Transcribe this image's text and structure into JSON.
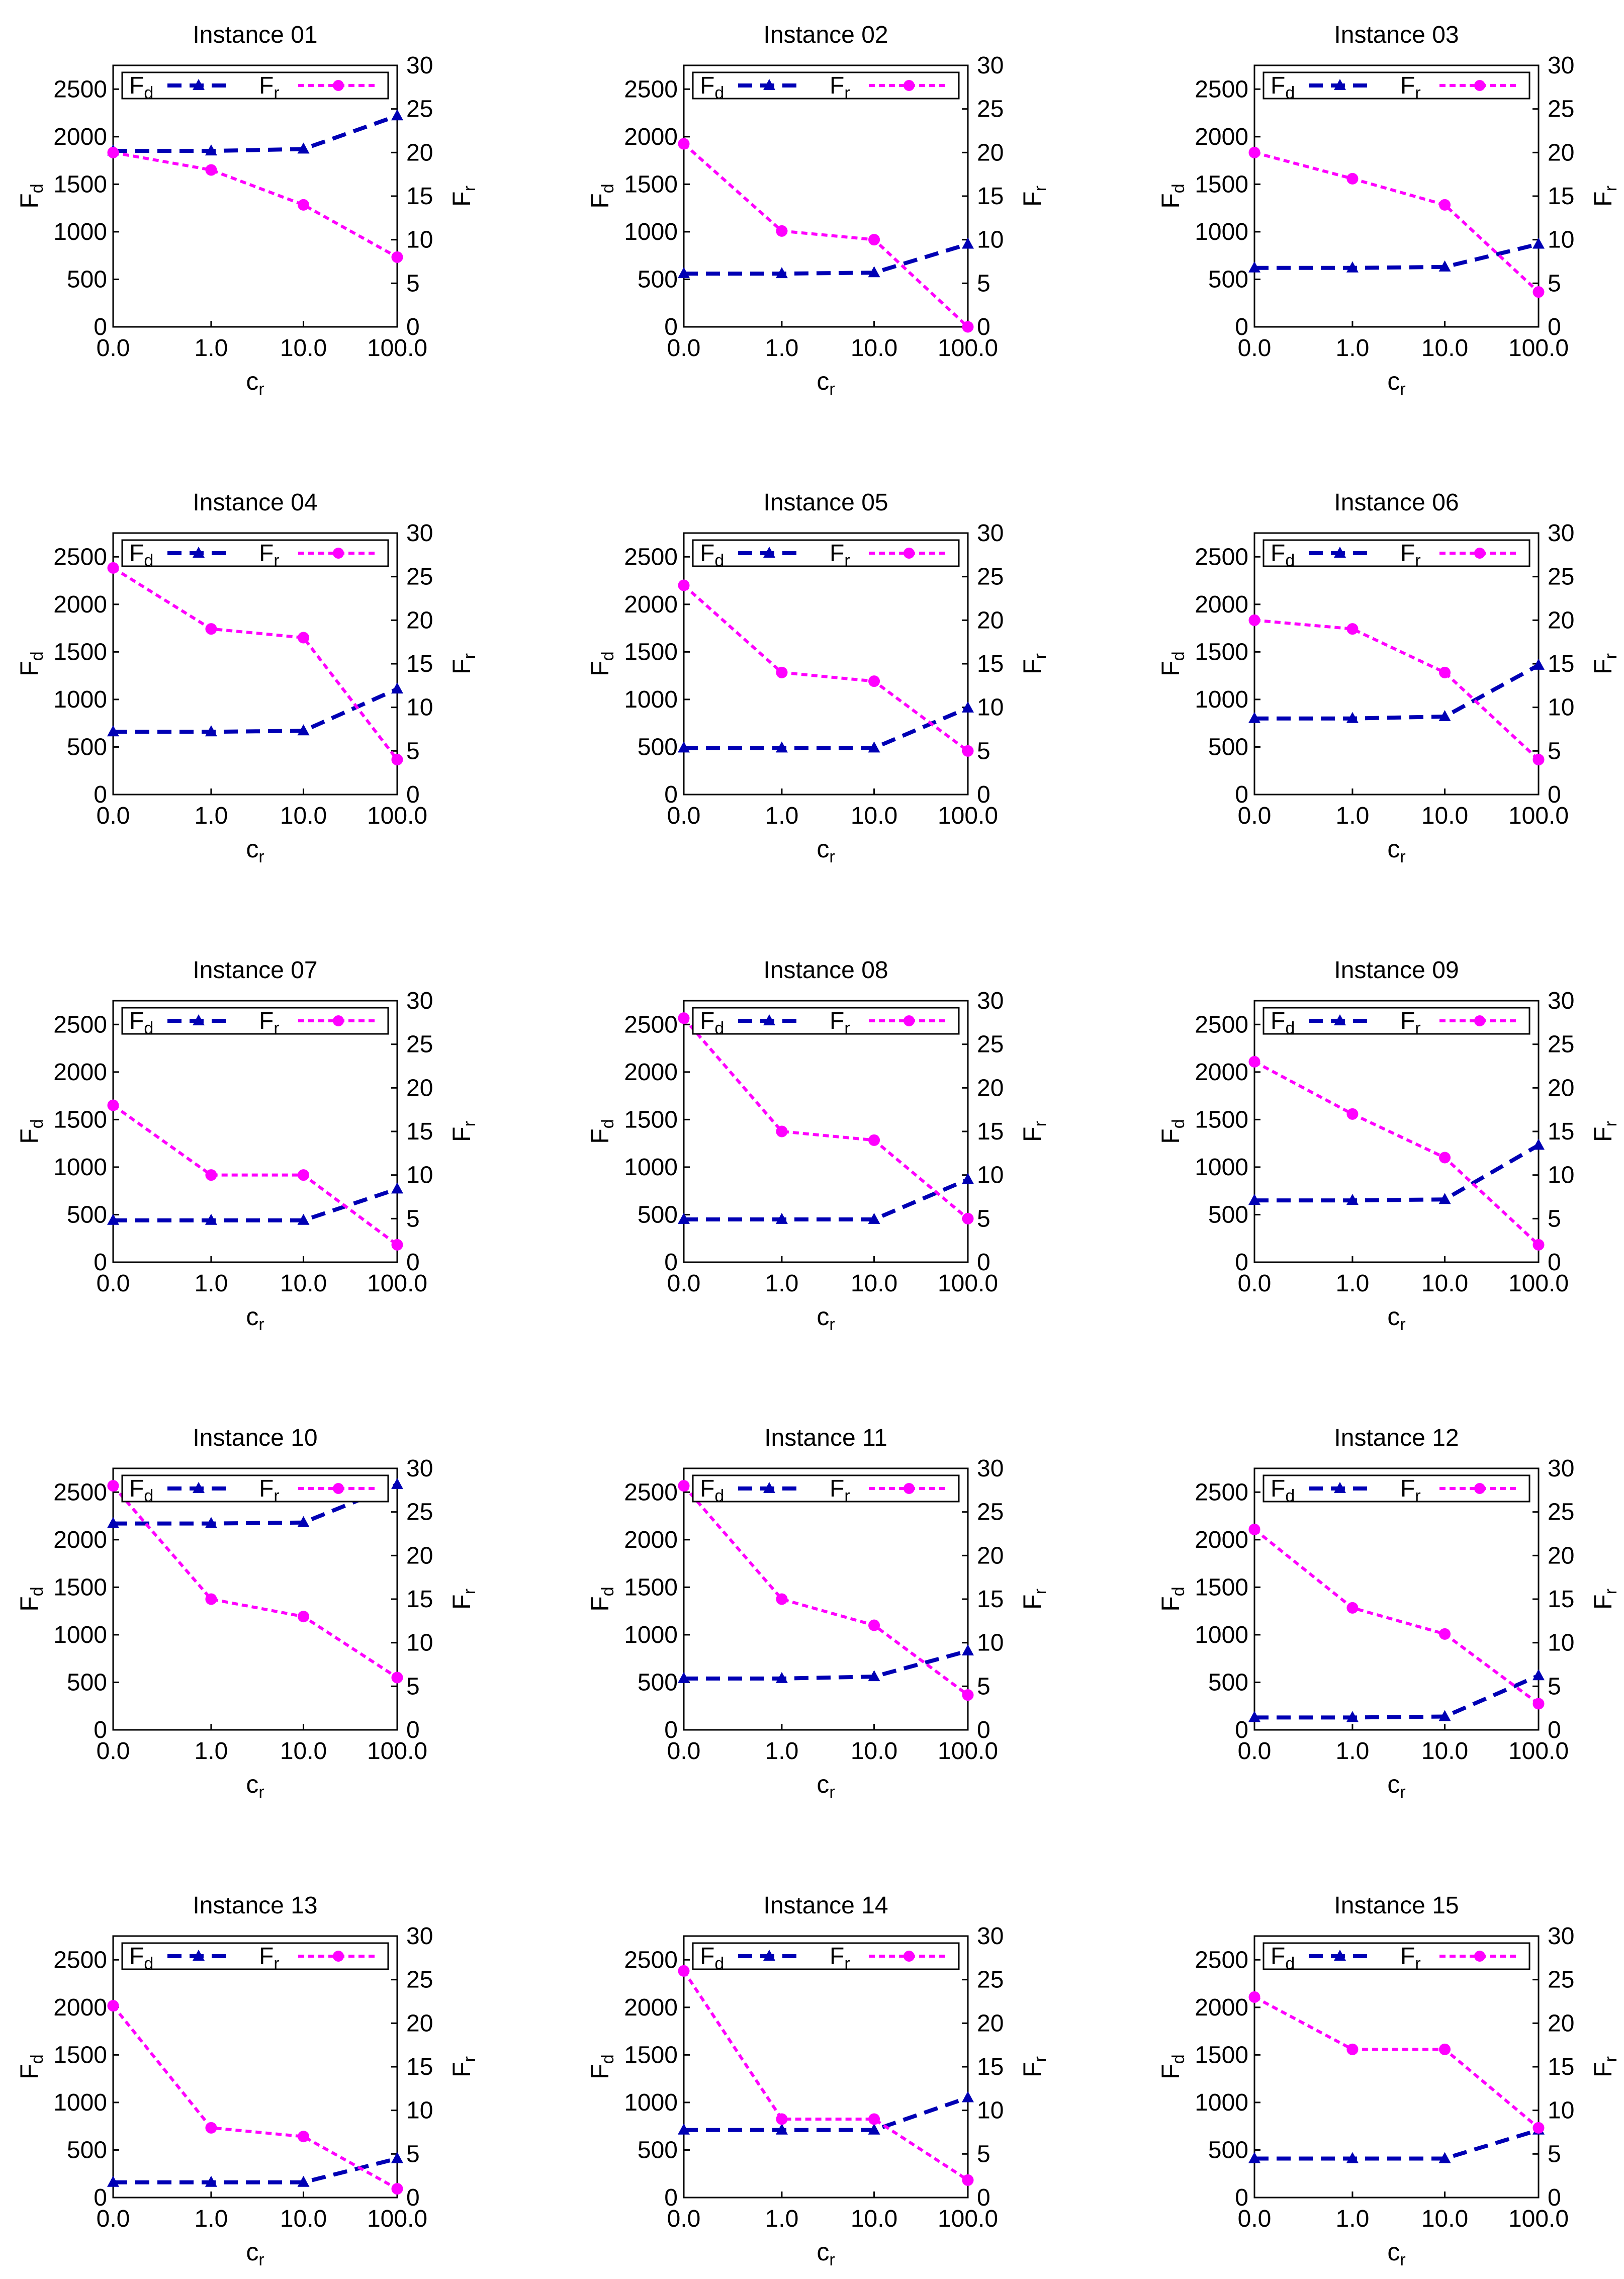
{
  "chart_data": {
    "type": "line",
    "layout": "grid 5x3 small multiples",
    "x_categories": [
      "0.0",
      "1.0",
      "10.0",
      "100.0"
    ],
    "xlabel": {
      "base": "c",
      "sub": "r"
    },
    "ylabel_left": {
      "base": "F",
      "sub": "d"
    },
    "ylabel_right": {
      "base": "F",
      "sub": "r"
    },
    "ylim_left": [
      0,
      2750
    ],
    "ylim_right": [
      0,
      30
    ],
    "yticks_left": [
      0,
      500,
      1000,
      1500,
      2000,
      2500
    ],
    "yticks_right": [
      0,
      5,
      10,
      15,
      20,
      25,
      30
    ],
    "legend": {
      "position": "top",
      "entries": [
        {
          "base": "F",
          "sub": "d",
          "color": "#0000b4",
          "style": "dashed",
          "marker": "triangle"
        },
        {
          "base": "F",
          "sub": "r",
          "color": "#ff00ff",
          "style": "dotted",
          "marker": "circle"
        }
      ]
    },
    "panels": [
      {
        "title": "Instance 01",
        "fd": [
          1850,
          1850,
          1870,
          2220
        ],
        "fr": [
          20,
          18,
          14,
          8
        ]
      },
      {
        "title": "Instance 02",
        "fd": [
          560,
          560,
          570,
          870
        ],
        "fr": [
          21,
          11,
          10,
          0
        ]
      },
      {
        "title": "Instance 03",
        "fd": [
          620,
          620,
          630,
          870
        ],
        "fr": [
          20,
          17,
          14,
          4
        ]
      },
      {
        "title": "Instance 04",
        "fd": [
          660,
          660,
          670,
          1110
        ],
        "fr": [
          26,
          19,
          18,
          4
        ]
      },
      {
        "title": "Instance 05",
        "fd": [
          490,
          490,
          490,
          910
        ],
        "fr": [
          24,
          14,
          13,
          5
        ]
      },
      {
        "title": "Instance 06",
        "fd": [
          800,
          800,
          820,
          1360
        ],
        "fr": [
          20,
          19,
          14,
          4
        ]
      },
      {
        "title": "Instance 07",
        "fd": [
          440,
          440,
          440,
          770
        ],
        "fr": [
          18,
          10,
          10,
          2
        ]
      },
      {
        "title": "Instance 08",
        "fd": [
          450,
          450,
          450,
          870
        ],
        "fr": [
          28,
          15,
          14,
          5
        ]
      },
      {
        "title": "Instance 09",
        "fd": [
          650,
          650,
          660,
          1230
        ],
        "fr": [
          23,
          17,
          12,
          2
        ]
      },
      {
        "title": "Instance 10",
        "fd": [
          2170,
          2170,
          2180,
          2580
        ],
        "fr": [
          28,
          15,
          13,
          6
        ]
      },
      {
        "title": "Instance 11",
        "fd": [
          540,
          540,
          560,
          830
        ],
        "fr": [
          28,
          15,
          12,
          4
        ]
      },
      {
        "title": "Instance 12",
        "fd": [
          130,
          130,
          140,
          570
        ],
        "fr": [
          23,
          14,
          11,
          3
        ]
      },
      {
        "title": "Instance 13",
        "fd": [
          160,
          160,
          160,
          410
        ],
        "fr": [
          22,
          8,
          7,
          1
        ]
      },
      {
        "title": "Instance 14",
        "fd": [
          710,
          710,
          710,
          1050
        ],
        "fr": [
          26,
          9,
          9,
          2
        ]
      },
      {
        "title": "Instance 15",
        "fd": [
          410,
          410,
          410,
          710
        ],
        "fr": [
          23,
          17,
          17,
          8
        ]
      }
    ]
  }
}
